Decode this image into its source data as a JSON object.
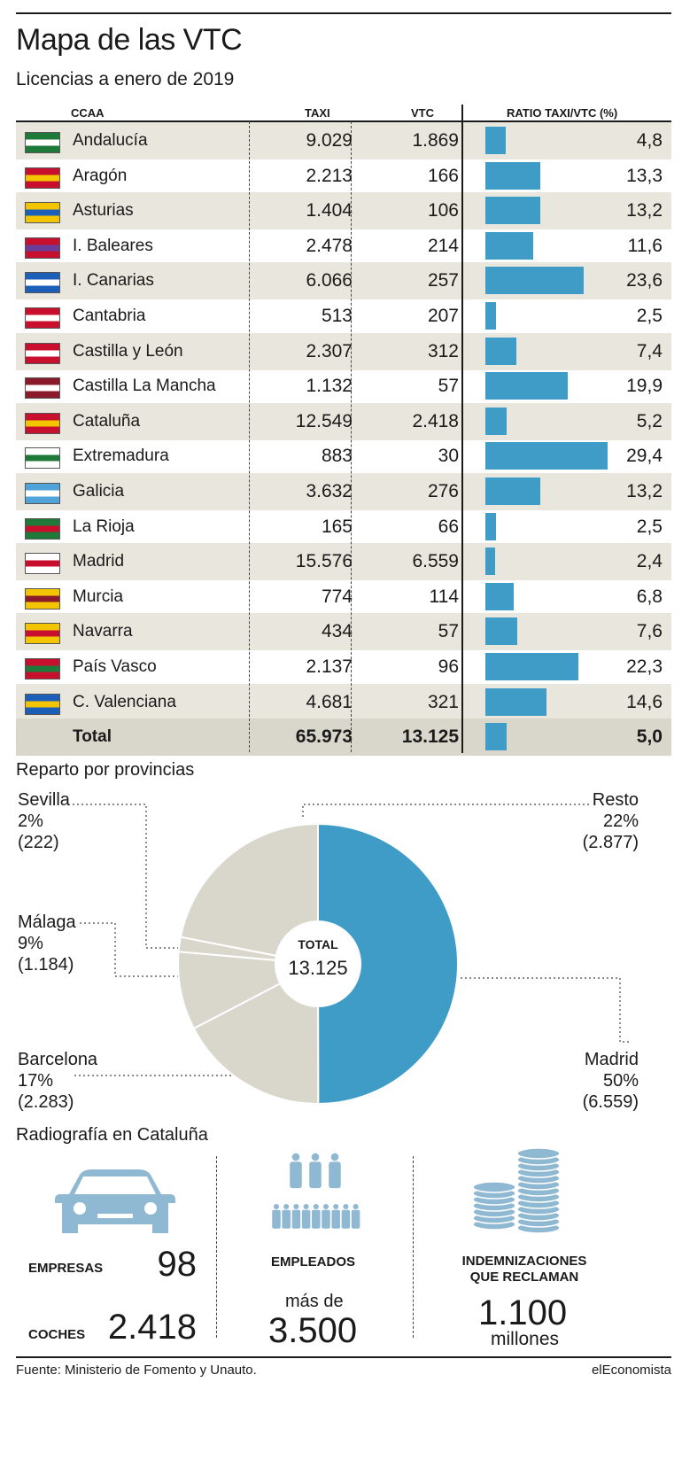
{
  "title": "Mapa de las VTC",
  "subtitle": "Licencias a enero de 2019",
  "table": {
    "headers": {
      "ccaa": "CCAA",
      "taxi": "TAXI",
      "vtc": "VTC",
      "ratio": "RATIO TAXI/VTC (%)"
    },
    "rows": [
      {
        "name": "Andalucía",
        "taxi": "9.029",
        "vtc": "1.869",
        "ratio": "4,8"
      },
      {
        "name": "Aragón",
        "taxi": "2.213",
        "vtc": "166",
        "ratio": "13,3"
      },
      {
        "name": "Asturias",
        "taxi": "1.404",
        "vtc": "106",
        "ratio": "13,2"
      },
      {
        "name": "I. Baleares",
        "taxi": "2.478",
        "vtc": "214",
        "ratio": "11,6"
      },
      {
        "name": "I. Canarias",
        "taxi": "6.066",
        "vtc": "257",
        "ratio": "23,6"
      },
      {
        "name": "Cantabria",
        "taxi": "513",
        "vtc": "207",
        "ratio": "2,5"
      },
      {
        "name": "Castilla y León",
        "taxi": "2.307",
        "vtc": "312",
        "ratio": "7,4"
      },
      {
        "name": "Castilla La Mancha",
        "taxi": "1.132",
        "vtc": "57",
        "ratio": "19,9"
      },
      {
        "name": "Cataluña",
        "taxi": "12.549",
        "vtc": "2.418",
        "ratio": "5,2"
      },
      {
        "name": "Extremadura",
        "taxi": "883",
        "vtc": "30",
        "ratio": "29,4"
      },
      {
        "name": "Galicia",
        "taxi": "3.632",
        "vtc": "276",
        "ratio": "13,2"
      },
      {
        "name": "La Rioja",
        "taxi": "165",
        "vtc": "66",
        "ratio": "2,5"
      },
      {
        "name": "Madrid",
        "taxi": "15.576",
        "vtc": "6.559",
        "ratio": "2,4"
      },
      {
        "name": "Murcia",
        "taxi": "774",
        "vtc": "114",
        "ratio": "6,8"
      },
      {
        "name": "Navarra",
        "taxi": "434",
        "vtc": "57",
        "ratio": "7,6"
      },
      {
        "name": "País Vasco",
        "taxi": "2.137",
        "vtc": "96",
        "ratio": "22,3"
      },
      {
        "name": "C. Valenciana",
        "taxi": "4.681",
        "vtc": "321",
        "ratio": "14,6"
      }
    ],
    "total": {
      "name": "Total",
      "taxi": "65.973",
      "vtc": "13.125",
      "ratio": "5,0"
    }
  },
  "pie_section": {
    "heading": "Reparto por provincias",
    "center_label": "TOTAL",
    "center_value": "13.125",
    "labels": {
      "sevilla": [
        "Sevilla",
        "2%",
        "(222)"
      ],
      "malaga": [
        "Málaga",
        "9%",
        "(1.184)"
      ],
      "barcelona": [
        "Barcelona",
        "17%",
        "(2.283)"
      ],
      "resto": [
        "Resto",
        "22%",
        "(2.877)"
      ],
      "madrid": [
        "Madrid",
        "50%",
        "(6.559)"
      ]
    }
  },
  "chart_data": [
    {
      "type": "bar",
      "categories": [
        "Andalucía",
        "Aragón",
        "Asturias",
        "I. Baleares",
        "I. Canarias",
        "Cantabria",
        "Castilla y León",
        "Castilla La Mancha",
        "Cataluña",
        "Extremadura",
        "Galicia",
        "La Rioja",
        "Madrid",
        "Murcia",
        "Navarra",
        "País Vasco",
        "C. Valenciana",
        "Total"
      ],
      "series": [
        {
          "name": "TAXI",
          "values": [
            9029,
            2213,
            1404,
            2478,
            6066,
            513,
            2307,
            1132,
            12549,
            883,
            3632,
            165,
            15576,
            774,
            434,
            2137,
            4681,
            65973
          ]
        },
        {
          "name": "VTC",
          "values": [
            1869,
            166,
            106,
            214,
            257,
            207,
            312,
            57,
            2418,
            30,
            276,
            66,
            6559,
            114,
            57,
            96,
            321,
            13125
          ]
        },
        {
          "name": "RATIO TAXI/VTC (%)",
          "values": [
            4.8,
            13.3,
            13.2,
            11.6,
            23.6,
            2.5,
            7.4,
            19.9,
            5.2,
            29.4,
            13.2,
            2.5,
            2.4,
            6.8,
            7.6,
            22.3,
            14.6,
            5.0
          ]
        }
      ],
      "title": "Mapa de las VTC",
      "subtitle": "Licencias a enero de 2019",
      "xlim": [
        0,
        30
      ]
    },
    {
      "type": "pie",
      "title": "Reparto por provincias",
      "categories": [
        "Madrid",
        "Barcelona",
        "Málaga",
        "Sevilla",
        "Resto"
      ],
      "values": [
        6559,
        2283,
        1184,
        222,
        2877
      ],
      "percent": [
        50,
        17,
        9,
        2,
        22
      ],
      "center_label": "TOTAL",
      "center_value": "13.125",
      "colors": {
        "Madrid": "#3f9cc6",
        "others": "#d9d7cc"
      }
    }
  ],
  "cataluna": {
    "heading": "Radiografía en Cataluña",
    "empresas_label": "EMPRESAS",
    "empresas_value": "98",
    "coches_label": "COCHES",
    "coches_value": "2.418",
    "empleados_label": "EMPLEADOS",
    "empleados_prefix": "más de",
    "empleados_value": "3.500",
    "indemn_label_1": "INDEMNIZACIONES",
    "indemn_label_2": "QUE RECLAMAN",
    "indemn_value": "1.100",
    "indemn_unit": "millones",
    "icons": [
      "car-icon",
      "people-icon",
      "coins-icon"
    ]
  },
  "footer": {
    "source": "Fuente: Ministerio de Fomento y Unauto.",
    "brand": "elEconomista"
  },
  "colors": {
    "accent": "#3f9cc6",
    "shade": "#e9e7dd",
    "total_bg": "#d9d7cc",
    "pie_grey": "#d9d7cc"
  }
}
